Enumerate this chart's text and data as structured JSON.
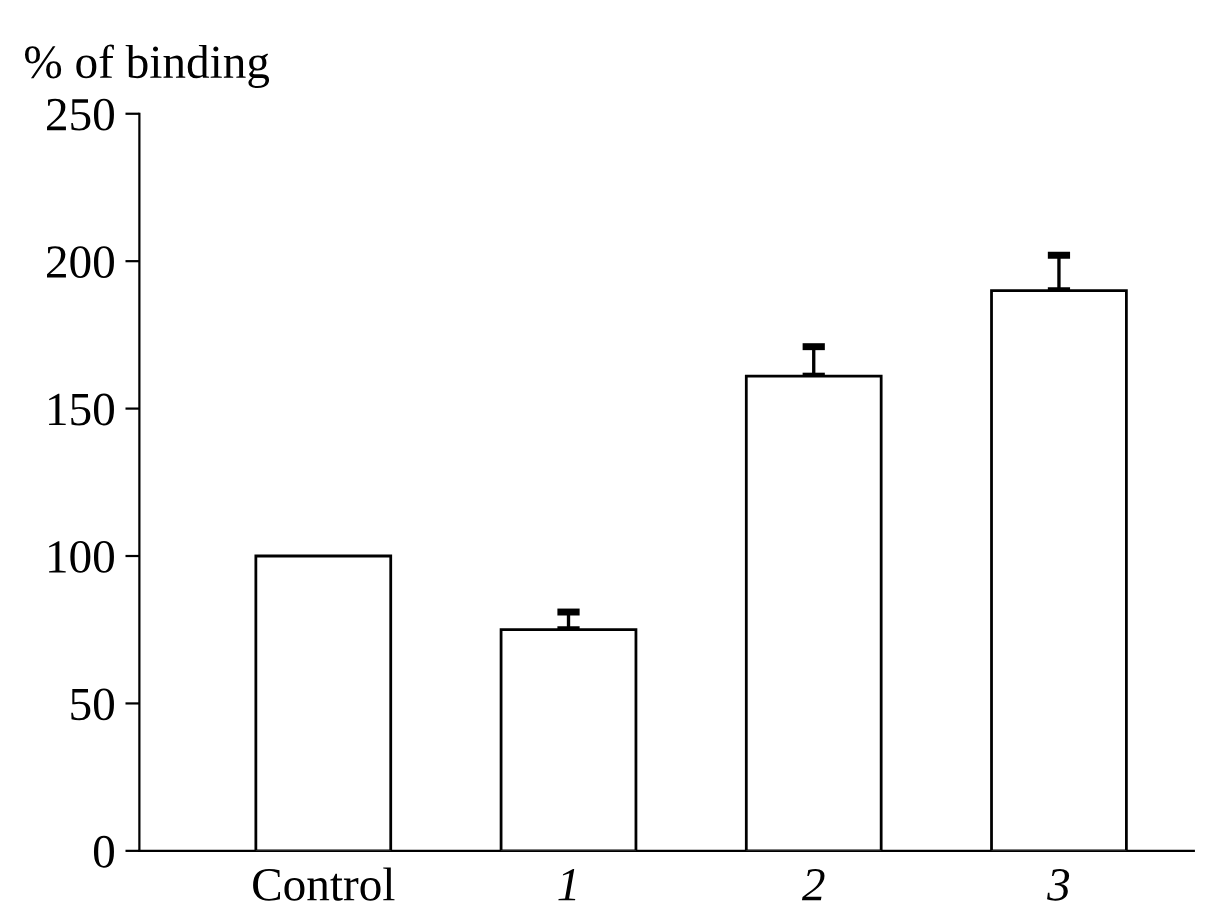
{
  "chart_data": {
    "type": "bar",
    "ylabel": "% of binding",
    "categories": [
      "Control",
      "1",
      "2",
      "3"
    ],
    "values": [
      100,
      75,
      161,
      190
    ],
    "errors": [
      null,
      [
        75,
        81
      ],
      [
        161,
        171
      ],
      [
        190,
        202
      ]
    ],
    "color": "#ffffff",
    "ylim": [
      0,
      250
    ],
    "yticks": [
      0,
      50,
      100,
      150,
      200,
      250
    ],
    "grid": false
  }
}
